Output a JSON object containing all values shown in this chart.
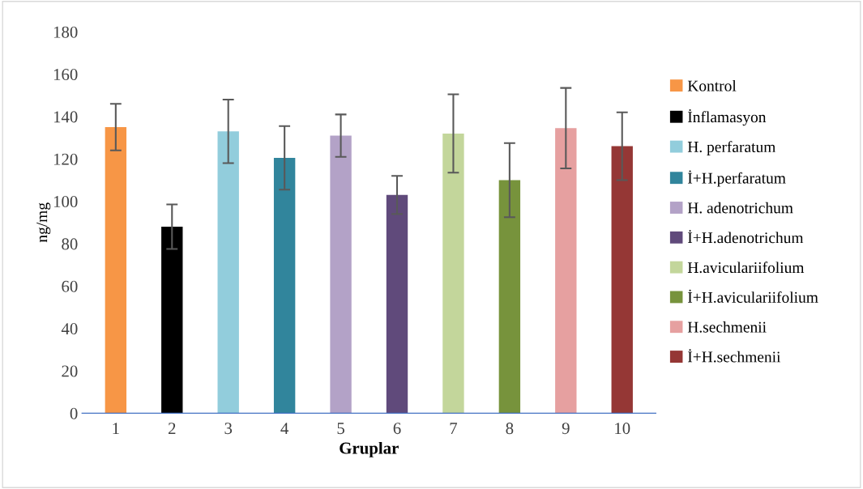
{
  "chart_data": {
    "type": "bar",
    "xlabel": "Gruplar",
    "ylabel": "ng/mg",
    "categories": [
      "1",
      "2",
      "3",
      "4",
      "5",
      "6",
      "7",
      "8",
      "9",
      "10"
    ],
    "ylim": [
      0,
      180
    ],
    "yticks": [
      0,
      20,
      40,
      60,
      80,
      100,
      120,
      140,
      160,
      180
    ],
    "grid": false,
    "legend": "right",
    "series": [
      {
        "name": "Kontrol",
        "color": "#f79646",
        "values": [
          135,
          null,
          null,
          null,
          null,
          null,
          null,
          null,
          null,
          null
        ],
        "errors": [
          11,
          null,
          null,
          null,
          null,
          null,
          null,
          null,
          null,
          null
        ]
      },
      {
        "name": "İnflamasyon",
        "color": "#000000",
        "values": [
          null,
          88,
          null,
          null,
          null,
          null,
          null,
          null,
          null,
          null
        ],
        "errors": [
          null,
          10.5,
          null,
          null,
          null,
          null,
          null,
          null,
          null,
          null
        ]
      },
      {
        "name": "H. perfaratum",
        "color": "#92cddc",
        "values": [
          null,
          null,
          133,
          null,
          null,
          null,
          null,
          null,
          null,
          null
        ],
        "errors": [
          null,
          null,
          15,
          null,
          null,
          null,
          null,
          null,
          null,
          null
        ]
      },
      {
        "name": "İ+H.perfaratum",
        "color": "#31859c",
        "values": [
          null,
          null,
          null,
          120.5,
          null,
          null,
          null,
          null,
          null,
          null
        ],
        "errors": [
          null,
          null,
          null,
          15,
          null,
          null,
          null,
          null,
          null,
          null
        ]
      },
      {
        "name": "H. adenotrichum",
        "color": "#b3a2c7",
        "values": [
          null,
          null,
          null,
          null,
          131,
          null,
          null,
          null,
          null,
          null
        ],
        "errors": [
          null,
          null,
          null,
          null,
          10,
          null,
          null,
          null,
          null,
          null
        ]
      },
      {
        "name": "İ+H.adenotrichum",
        "color": "#604a7b",
        "values": [
          null,
          null,
          null,
          null,
          null,
          103,
          null,
          null,
          null,
          null
        ],
        "errors": [
          null,
          null,
          null,
          null,
          null,
          9,
          null,
          null,
          null,
          null
        ]
      },
      {
        "name": "H.aviculariifolium",
        "color": "#c3d69b",
        "values": [
          null,
          null,
          null,
          null,
          null,
          null,
          132,
          null,
          null,
          null
        ],
        "errors": [
          null,
          null,
          null,
          null,
          null,
          null,
          18.5,
          null,
          null,
          null
        ]
      },
      {
        "name": "İ+H.aviculariifolium",
        "color": "#77933c",
        "values": [
          null,
          null,
          null,
          null,
          null,
          null,
          null,
          110,
          null,
          null
        ],
        "errors": [
          null,
          null,
          null,
          null,
          null,
          null,
          null,
          17.5,
          null,
          null
        ]
      },
      {
        "name": "H.sechmenii",
        "color": "#e6a0a0",
        "values": [
          null,
          null,
          null,
          null,
          null,
          null,
          null,
          null,
          134.5,
          null
        ],
        "errors": [
          null,
          null,
          null,
          null,
          null,
          null,
          null,
          null,
          19,
          null
        ]
      },
      {
        "name": "İ+H.sechmenii",
        "color": "#953735",
        "values": [
          null,
          null,
          null,
          null,
          null,
          null,
          null,
          null,
          null,
          126
        ],
        "errors": [
          null,
          null,
          null,
          null,
          null,
          null,
          null,
          null,
          null,
          16
        ]
      }
    ]
  }
}
